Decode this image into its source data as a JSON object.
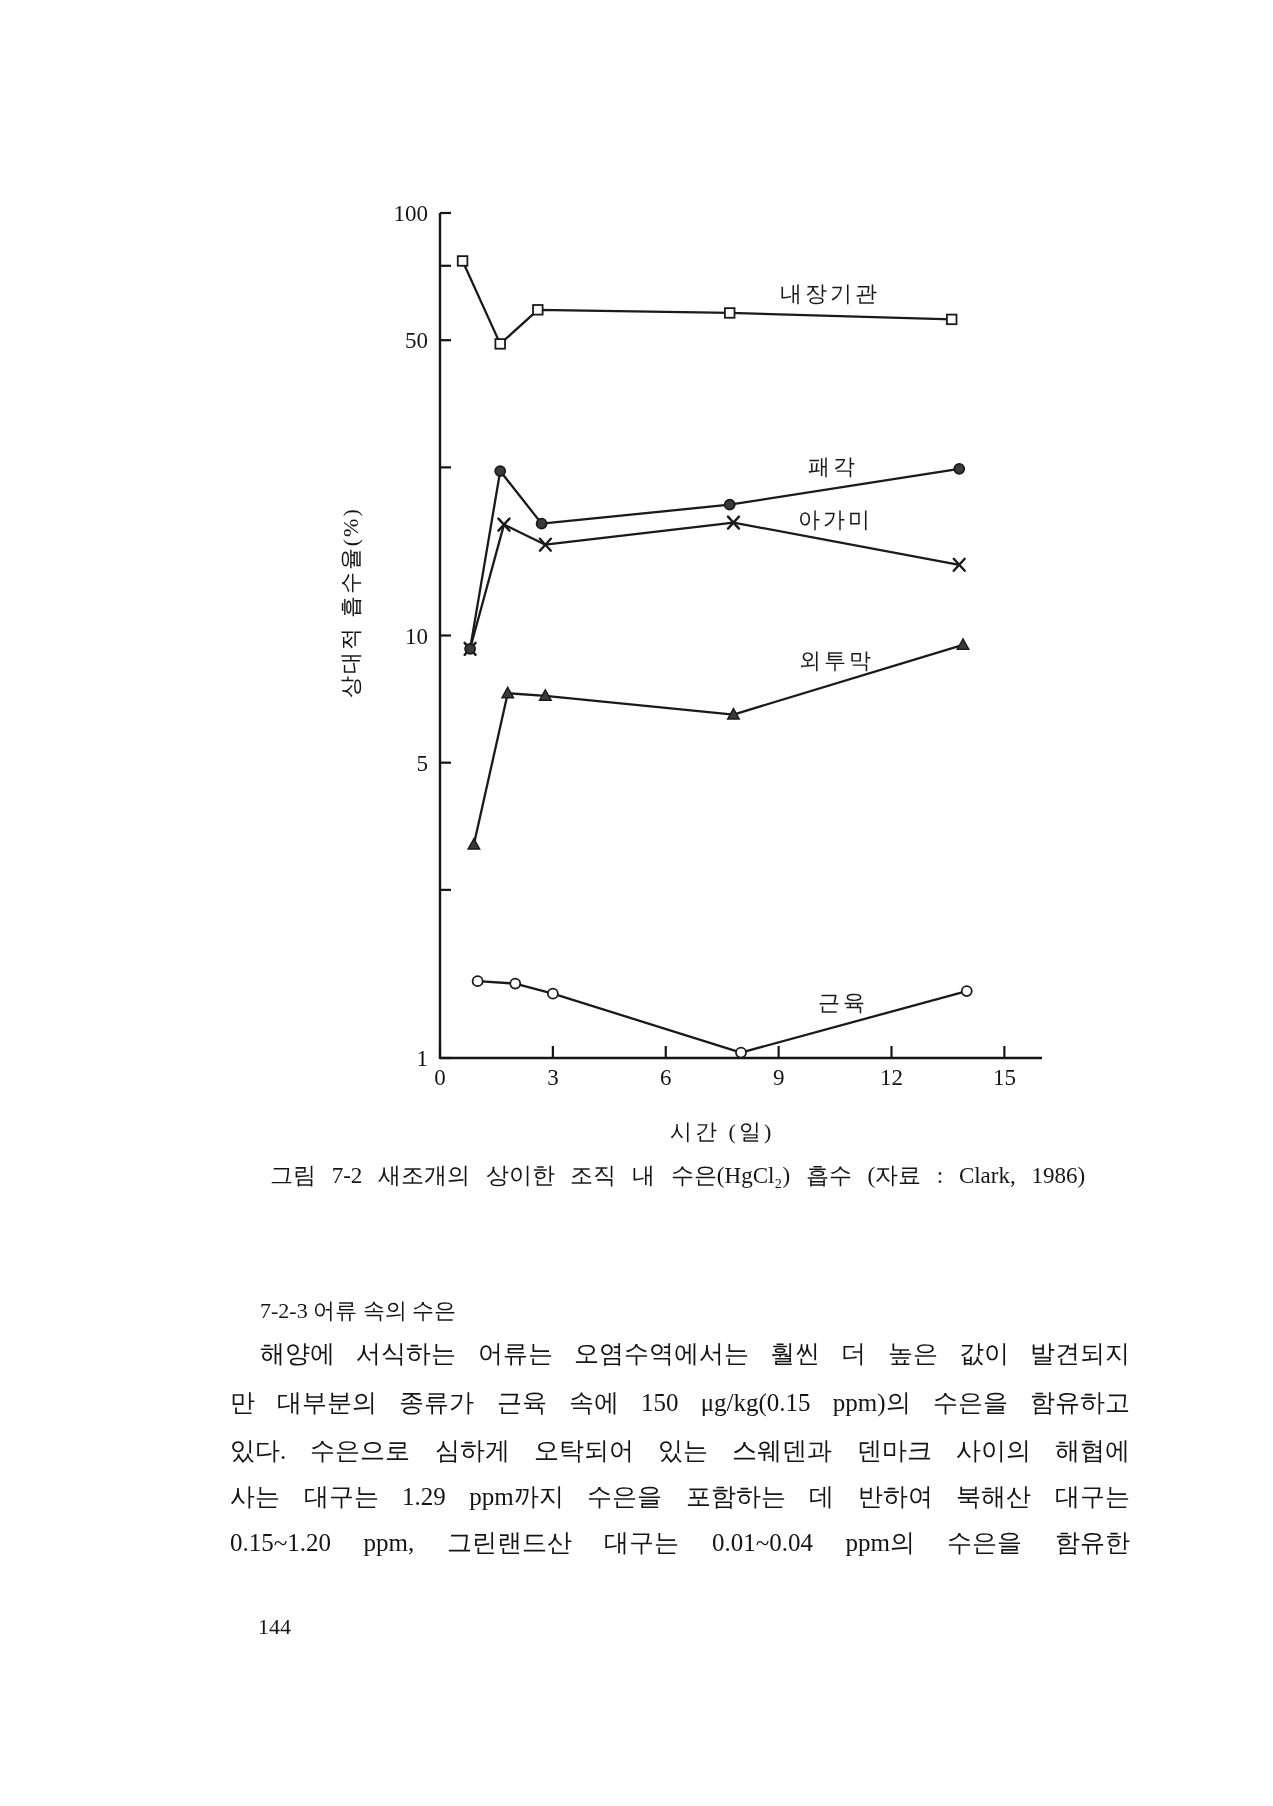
{
  "chart_data": {
    "type": "line",
    "title": "그림 7-2  새조개의 상이한 조직 내 수은(HgCl₂) 흡수 (자료 : Clark, 1986)",
    "xlabel": "시간 (일)",
    "ylabel": "상대적 흡수율(%)",
    "log": "y",
    "xlim": [
      0,
      16
    ],
    "xticks": [
      0,
      3,
      6,
      9,
      12,
      15
    ],
    "ylim": [
      1,
      100
    ],
    "yticks": [
      1,
      {
        "value": 2.5,
        "label": null
      },
      5,
      10,
      {
        "value": 25,
        "label": null
      },
      50,
      {
        "value": 75,
        "label": null
      },
      100
    ],
    "series": [
      {
        "name": "내장기관",
        "marker": "square",
        "color": "#1a1a1a",
        "colors": [
          "#ffffff",
          "#ffffff",
          "#ffffff",
          "#ffffff",
          "#ffffff"
        ],
        "x": [
          0.6,
          1.6,
          2.6,
          7.7,
          13.6
        ],
        "values": [
          77,
          49,
          59,
          58,
          56
        ]
      },
      {
        "name": "패각",
        "marker": "circle",
        "color": "#1a1a1a",
        "colors": [
          "#3a3a3a",
          "#3a3a3a",
          "#3a3a3a",
          "#3a3a3a",
          "#3a3a3a"
        ],
        "x": [
          0.8,
          1.6,
          2.7,
          7.7,
          13.8
        ],
        "values": [
          9.3,
          24.5,
          18.4,
          20.4,
          24.8
        ]
      },
      {
        "name": "아가미",
        "marker": "cross",
        "color": "#1a1a1a",
        "x": [
          0.8,
          1.7,
          2.8,
          7.8,
          13.8
        ],
        "values": [
          9.3,
          18.3,
          16.4,
          18.5,
          14.7
        ]
      },
      {
        "name": "외투막",
        "marker": "triangle",
        "color": "#1a1a1a",
        "colors": [
          "#3a3a3a",
          "#3a3a3a",
          "#3a3a3a",
          "#3a3a3a",
          "#3a3a3a"
        ],
        "x": [
          0.9,
          1.8,
          2.8,
          7.8,
          13.9
        ],
        "values": [
          3.2,
          7.3,
          7.2,
          6.5,
          9.5
        ]
      },
      {
        "name": "근육",
        "marker": "circle",
        "color": "#1a1a1a",
        "colors": [
          "#ffffff",
          "#ffffff",
          "#ffffff",
          "#ffffff",
          "#ffffff"
        ],
        "x": [
          1,
          2,
          3,
          8,
          14
        ],
        "values": [
          1.52,
          1.5,
          1.42,
          1.03,
          1.44
        ]
      }
    ],
    "annotations": [
      "7-2-3 어류 속의 수은",
      "해양에 서식하는 어류는 오염수역에서는 훨씬 더 높은 값이 발견되지",
      "만 대부분의 종류가 근육 속에 150 μg/kg(0.15 ppm)의 수은을 함유하고",
      "있다. 수은으로 심하게 오탁되어 있는 스웨덴과 덴마크 사이의 해협에",
      "사는 대구는 1.29 ppm까지 수은을 포함하는 데 반하여 북해산 대구는",
      "0.15~1.20 ppm, 그린랜드산 대구는 0.01~0.04 ppm의 수은을 함유한",
      "144"
    ]
  }
}
